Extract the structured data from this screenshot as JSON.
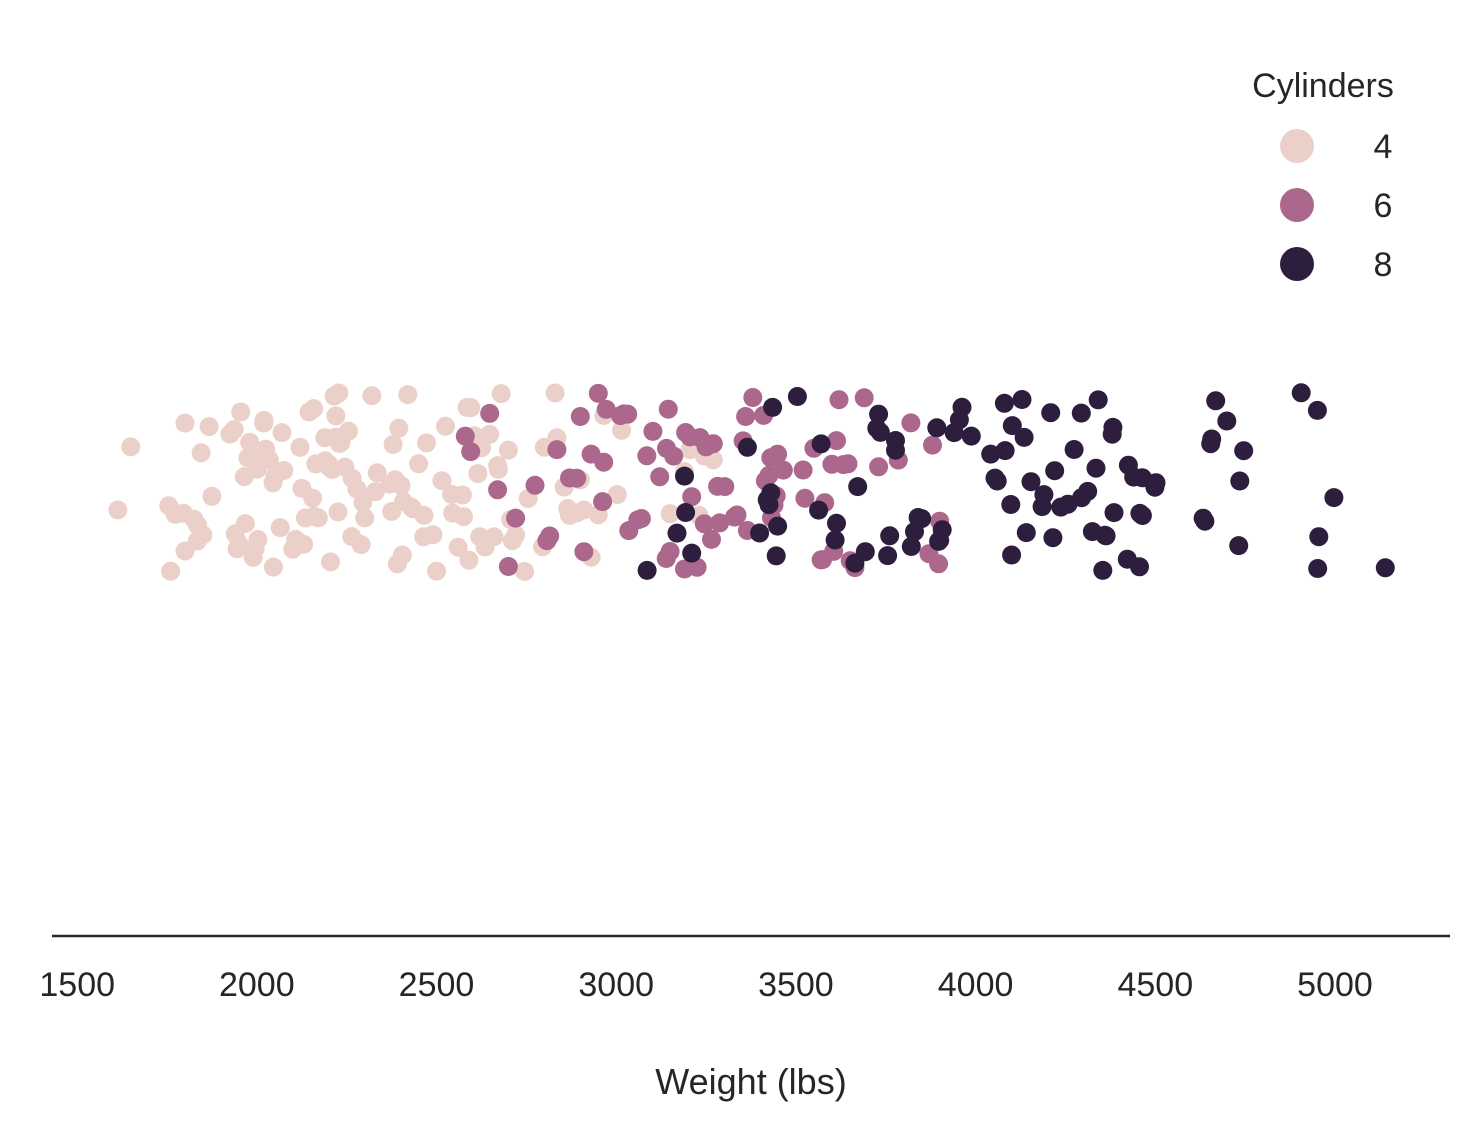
{
  "chart_data": {
    "type": "scatter",
    "subtype": "strip",
    "xlabel": "Weight (lbs)",
    "ylabel": "",
    "xlim": [
      1430,
      5320
    ],
    "xticks": [
      1500,
      2000,
      2500,
      3000,
      3500,
      4000,
      4500,
      5000
    ],
    "xtick_labels": [
      "1500",
      "2000",
      "2500",
      "3000",
      "3500",
      "4000",
      "4500",
      "5000"
    ],
    "grid": false,
    "legend": {
      "title": "Cylinders",
      "placement": "top-right",
      "entries": [
        {
          "label": "4",
          "color": "#ead0c9"
        },
        {
          "label": "6",
          "color": "#ac678d"
        },
        {
          "label": "8",
          "color": "#2d1e3e"
        }
      ]
    },
    "series": [
      {
        "name": "4",
        "color": "#ead0c9",
        "values": [
          1613,
          1649,
          1755,
          1760,
          1773,
          1795,
          1800,
          1800,
          1825,
          1834,
          1835,
          1845,
          1850,
          1867,
          1875,
          1925,
          1937,
          1940,
          1945,
          1950,
          1955,
          1965,
          1968,
          1975,
          1980,
          1985,
          1990,
          1995,
          2000,
          2001,
          2003,
          2019,
          2020,
          2025,
          2035,
          2045,
          2046,
          2050,
          2065,
          2070,
          2075,
          2100,
          2108,
          2120,
          2125,
          2130,
          2135,
          2145,
          2155,
          2158,
          2160,
          2164,
          2171,
          2189,
          2190,
          2200,
          2202,
          2205,
          2210,
          2215,
          2219,
          2220,
          2226,
          2228,
          2230,
          2234,
          2245,
          2255,
          2264,
          2265,
          2278,
          2290,
          2295,
          2300,
          2320,
          2330,
          2335,
          2370,
          2375,
          2379,
          2385,
          2391,
          2395,
          2401,
          2405,
          2408,
          2420,
          2430,
          2434,
          2450,
          2464,
          2465,
          2472,
          2490,
          2500,
          2515,
          2525,
          2542,
          2545,
          2560,
          2572,
          2575,
          2585,
          2590,
          2595,
          2605,
          2615,
          2620,
          2625,
          2635,
          2648,
          2660,
          2670,
          2672,
          2680,
          2700,
          2706,
          2711,
          2720,
          2745,
          2755,
          2795,
          2800,
          2830,
          2835,
          2855,
          2865,
          2870,
          2890,
          2900,
          2910,
          2930,
          2950,
          2965,
          3003,
          3015,
          3150,
          3190,
          3205,
          3230,
          3245,
          3270
        ]
      },
      {
        "name": "6",
        "color": "#ac678d",
        "values": [
          2580,
          2595,
          2648,
          2670,
          2700,
          2720,
          2774,
          2807,
          2815,
          2835,
          2870,
          2890,
          2900,
          2910,
          2930,
          2950,
          2962,
          2965,
          2972,
          3012,
          3021,
          3032,
          3035,
          3060,
          3070,
          3085,
          3102,
          3121,
          3139,
          3140,
          3145,
          3150,
          3160,
          3190,
          3193,
          3205,
          3210,
          3225,
          3233,
          3245,
          3250,
          3265,
          3270,
          3282,
          3288,
          3302,
          3329,
          3336,
          3353,
          3360,
          3365,
          3380,
          3410,
          3415,
          3425,
          3430,
          3432,
          3439,
          3445,
          3449,
          3465,
          3520,
          3525,
          3550,
          3570,
          3574,
          3580,
          3600,
          3605,
          3613,
          3620,
          3632,
          3645,
          3651,
          3664,
          3690,
          3730,
          3785,
          3820,
          3870,
          3880,
          3897,
          3900
        ]
      },
      {
        "name": "8",
        "color": "#2d1e3e",
        "values": [
          3086,
          3169,
          3190,
          3193,
          3210,
          3365,
          3399,
          3420,
          3425,
          3430,
          3435,
          3445,
          3449,
          3504,
          3563,
          3570,
          3609,
          3613,
          3664,
          3672,
          3693,
          3725,
          3730,
          3735,
          3755,
          3761,
          3777,
          3777,
          3821,
          3830,
          3840,
          3850,
          3892,
          3897,
          3900,
          3907,
          3940,
          3955,
          3962,
          3988,
          4042,
          4054,
          4060,
          4080,
          4082,
          4098,
          4100,
          4102,
          4129,
          4135,
          4141,
          4154,
          4185,
          4190,
          4209,
          4215,
          4220,
          4237,
          4257,
          4274,
          4294,
          4295,
          4312,
          4325,
          4335,
          4341,
          4354,
          4360,
          4363,
          4380,
          4382,
          4385,
          4422,
          4425,
          4440,
          4456,
          4457,
          4464,
          4464,
          4499,
          4502,
          4633,
          4638,
          4654,
          4657,
          4668,
          4699,
          4732,
          4735,
          4746,
          4906,
          4951,
          4952,
          4955,
          4997,
          5140
        ]
      }
    ]
  }
}
